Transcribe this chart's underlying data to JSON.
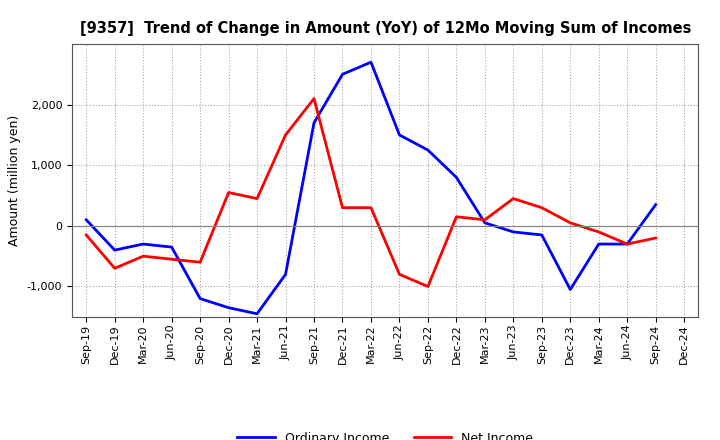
{
  "title": "[9357]  Trend of Change in Amount (YoY) of 12Mo Moving Sum of Incomes",
  "ylabel": "Amount (million yen)",
  "xlabels": [
    "Sep-19",
    "Dec-19",
    "Mar-20",
    "Jun-20",
    "Sep-20",
    "Dec-20",
    "Mar-21",
    "Jun-21",
    "Sep-21",
    "Dec-21",
    "Mar-22",
    "Jun-22",
    "Sep-22",
    "Dec-22",
    "Mar-23",
    "Jun-23",
    "Sep-23",
    "Dec-23",
    "Mar-24",
    "Jun-24",
    "Sep-24",
    "Dec-24"
  ],
  "ordinary_income": [
    100,
    -400,
    -300,
    -350,
    -1200,
    -1350,
    -1450,
    -800,
    1700,
    2500,
    2700,
    1500,
    1250,
    800,
    50,
    -100,
    -150,
    -1050,
    -300,
    -300,
    350,
    null
  ],
  "net_income": [
    -150,
    -700,
    -500,
    -550,
    -600,
    550,
    450,
    1500,
    2100,
    300,
    300,
    -800,
    -1000,
    150,
    100,
    450,
    300,
    50,
    -100,
    -300,
    -200,
    null
  ],
  "ordinary_income_color": "#0000ff",
  "net_income_color": "#ff0000",
  "ylim": [
    -1500,
    3000
  ],
  "yticks": [
    -1000,
    0,
    1000,
    2000
  ],
  "background_color": "#ffffff",
  "grid_color": "#aaaaaa",
  "legend_labels": [
    "Ordinary Income",
    "Net Income"
  ]
}
